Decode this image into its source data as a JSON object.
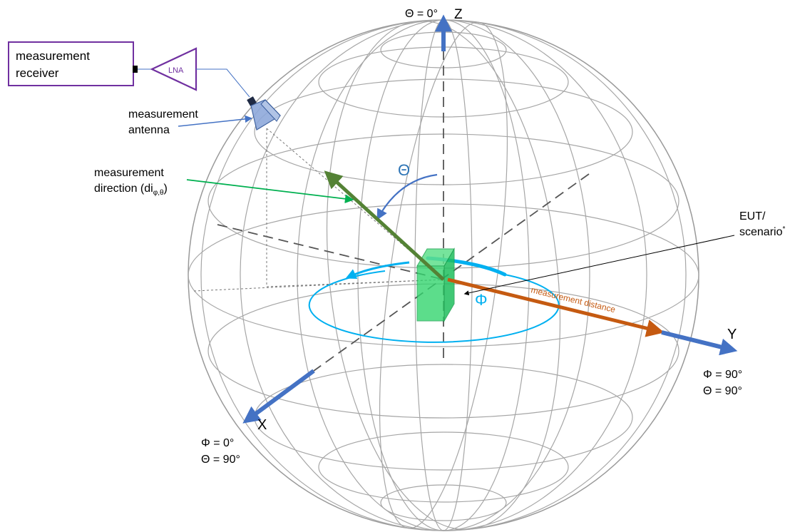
{
  "labels": {
    "theta_zero": "Θ = 0°",
    "z_axis": "Z",
    "y_axis": "Y",
    "x_axis": "X",
    "receiver_line1": "measurement",
    "receiver_line2": "receiver",
    "lna": "LNA",
    "antenna_line1": "measurement",
    "antenna_line2": "antenna",
    "direction_line1": "measurement",
    "direction_line2": "direction (di",
    "direction_sub": "φ,θ",
    "direction_close": ")",
    "theta_symbol": "Θ",
    "phi_symbol": "Φ",
    "eut_line1": "EUT/",
    "eut_line2": "scenario",
    "eut_mark": "*",
    "distance": "measurement  distance",
    "y_phi": "Φ = 90°",
    "y_theta": "Θ = 90°",
    "x_phi": "Φ = 0°",
    "x_theta": "Θ = 90°"
  },
  "colors": {
    "axis": "#4472c4",
    "sphere": "#a6a6a6",
    "direction": "#548235",
    "distance": "#c55a11",
    "angle": "#00b0f0",
    "eut": "#21d56a",
    "receiver_border": "#7030a0",
    "antenna": "#8ea9db"
  }
}
